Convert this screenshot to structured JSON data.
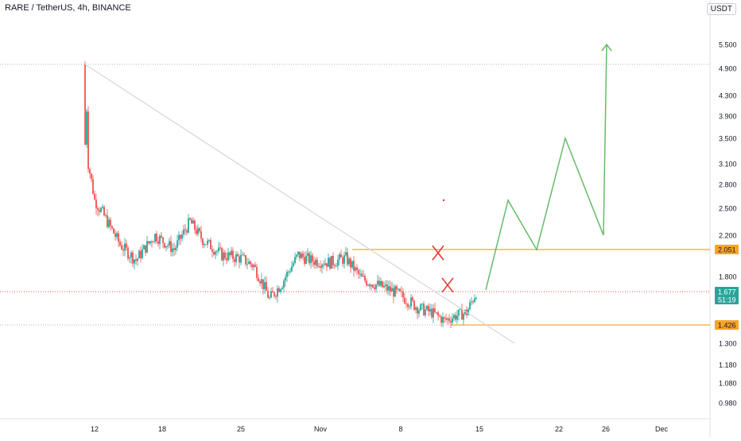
{
  "chart_data": {
    "type": "candlestick",
    "title": "RARE / TetherUS, 4h, BINANCE",
    "currency": "USDT",
    "y_ticks": [
      "5.500",
      "4.900",
      "4.300",
      "3.900",
      "3.500",
      "3.100",
      "2.800",
      "2.500",
      "2.200",
      "2.051",
      "1.800",
      "1.677",
      "1.426",
      "1.300",
      "1.180",
      "1.080",
      "0.980"
    ],
    "y_tick_values": [
      5.5,
      4.9,
      4.3,
      3.9,
      3.5,
      3.1,
      2.8,
      2.5,
      2.2,
      2.051,
      1.8,
      1.677,
      1.426,
      1.3,
      1.18,
      1.08,
      0.98
    ],
    "x_ticks": [
      "12",
      "18",
      "25",
      "Nov",
      "8",
      "15",
      "22",
      "26",
      "Dec"
    ],
    "price_labels": {
      "resistance": "2.051",
      "current": "1.677",
      "countdown": "51:19",
      "support": "1.426"
    },
    "levels": {
      "high": 5.0,
      "resistance": 2.051,
      "current": 1.677,
      "support": 1.426
    },
    "candle_anchors": [
      {
        "t": 0,
        "v": 5.0
      },
      {
        "t": 1,
        "v": 3.1
      },
      {
        "t": 3,
        "v": 2.6
      },
      {
        "t": 7,
        "v": 2.35
      },
      {
        "t": 11,
        "v": 2.1
      },
      {
        "t": 16,
        "v": 1.95
      },
      {
        "t": 22,
        "v": 2.2
      },
      {
        "t": 28,
        "v": 2.05
      },
      {
        "t": 33,
        "v": 2.35
      },
      {
        "t": 37,
        "v": 2.15
      },
      {
        "t": 43,
        "v": 2.0
      },
      {
        "t": 49,
        "v": 1.97
      },
      {
        "t": 53,
        "v": 1.9
      },
      {
        "t": 58,
        "v": 1.62
      },
      {
        "t": 62,
        "v": 1.75
      },
      {
        "t": 67,
        "v": 2.0
      },
      {
        "t": 71,
        "v": 1.95
      },
      {
        "t": 77,
        "v": 1.93
      },
      {
        "t": 82,
        "v": 1.97
      },
      {
        "t": 87,
        "v": 1.78
      },
      {
        "t": 92,
        "v": 1.73
      },
      {
        "t": 97,
        "v": 1.68
      },
      {
        "t": 101,
        "v": 1.62
      },
      {
        "t": 105,
        "v": 1.55
      },
      {
        "t": 109,
        "v": 1.52
      },
      {
        "t": 113,
        "v": 1.46
      },
      {
        "t": 117,
        "v": 1.5
      },
      {
        "t": 120,
        "v": 1.52
      },
      {
        "t": 123,
        "v": 1.677
      }
    ],
    "trendline": [
      {
        "t": 0,
        "v": 5.0
      },
      {
        "t": 135,
        "v": 1.3
      }
    ],
    "projection": [
      {
        "t": 126,
        "v": 1.69
      },
      {
        "t": 133,
        "v": 2.6
      },
      {
        "t": 142,
        "v": 2.05
      },
      {
        "t": 151,
        "v": 3.5
      },
      {
        "t": 163,
        "v": 2.2
      },
      {
        "t": 164,
        "v": 5.5
      }
    ],
    "annotations": [
      {
        "type": "cross",
        "t": 111,
        "v": 2.02,
        "color": "#e53935"
      },
      {
        "type": "cross",
        "t": 114,
        "v": 1.73,
        "color": "#e53935"
      }
    ],
    "colors": {
      "up": "#26a69a",
      "down": "#ef5350",
      "trendline": "#d9d9d9",
      "projection": "#66bb6a",
      "level_box": "#f5a623",
      "current": "#26a69a",
      "grid_dotted": "#b0b3bb",
      "text": "#131722"
    },
    "grid": false
  }
}
